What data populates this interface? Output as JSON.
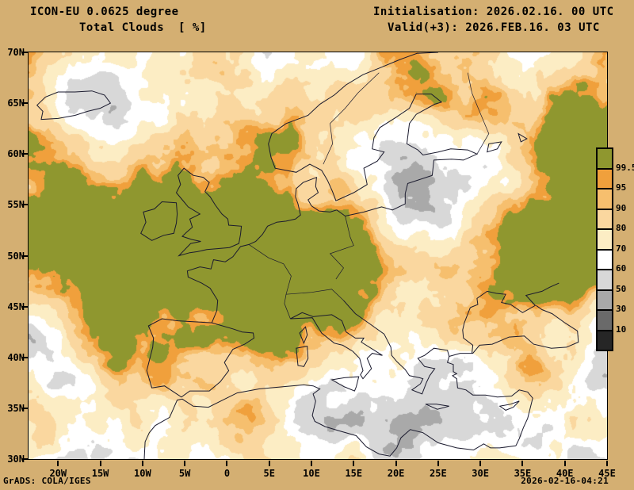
{
  "header": {
    "model": "ICON-EU 0.0625 degree",
    "variable": "Total Clouds  [ %]",
    "initialisation": "Initialisation: 2026.02.16. 00 UTC",
    "valid": "Valid(+3): 2026.FEB.16. 03 UTC"
  },
  "footer": {
    "left": "GrADS: COLA/IGES",
    "right": "2026-02-16-04:21"
  },
  "map": {
    "lat_ticks": [
      "70N",
      "65N",
      "60N",
      "55N",
      "50N",
      "45N",
      "40N",
      "35N",
      "30N"
    ],
    "lon_ticks": [
      "20W",
      "15W",
      "10W",
      "5W",
      "0",
      "5E",
      "10E",
      "15E",
      "20E",
      "25E",
      "30E",
      "35E",
      "40E",
      "45E"
    ],
    "lon_range": [
      -23.5,
      45
    ],
    "lat_range": [
      30,
      70
    ]
  },
  "legend": {
    "unit": "%",
    "labels": [
      "99.5",
      "95",
      "90",
      "80",
      "70",
      "60",
      "50",
      "30",
      "10"
    ],
    "colors": [
      "#8f972f",
      "#f0a03c",
      "#f6bf6e",
      "#fad79f",
      "#fcedc4",
      "#ffffff",
      "#d8d8d8",
      "#a9a9a9",
      "#6a6a6a",
      "#262626"
    ]
  },
  "colors": {
    "background": "#d4af72",
    "map_background": "#ffffff",
    "frame": "#000000",
    "text": "#000000",
    "coastline": "#1a1a2e"
  }
}
